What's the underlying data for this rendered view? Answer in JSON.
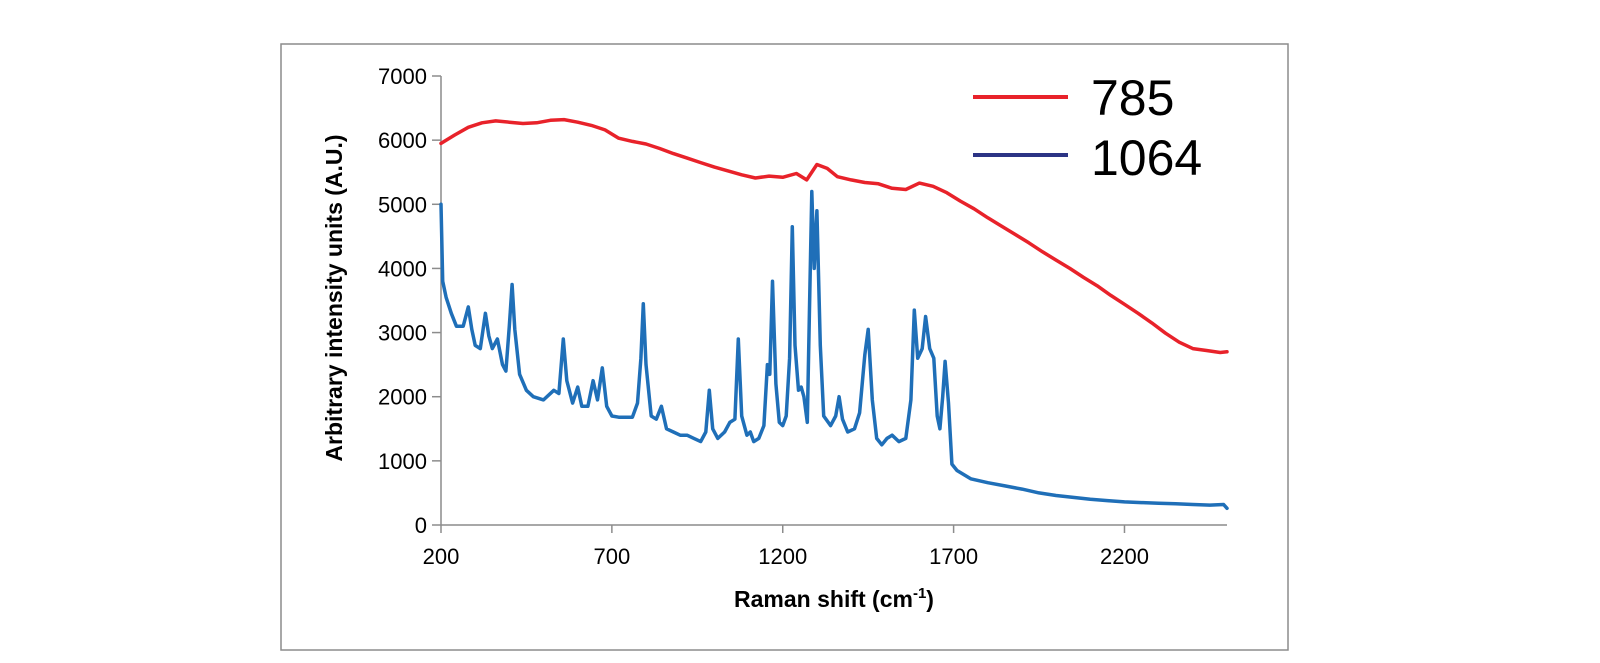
{
  "chart_data": {
    "type": "line",
    "title": "",
    "xlabel": "Raman shift (cm",
    "xlabel_sup": "-1",
    "xlabel_close": ")",
    "ylabel": "Arbitrary intensity units (A.U.)",
    "xlim": [
      200,
      2500
    ],
    "ylim": [
      0,
      7000
    ],
    "x_ticks": [
      200,
      700,
      1200,
      1700,
      2200
    ],
    "y_ticks": [
      0,
      1000,
      2000,
      3000,
      4000,
      5000,
      6000,
      7000
    ],
    "legend_position": "top-right",
    "series": [
      {
        "name": "785",
        "color": "#e8222a",
        "points": [
          [
            200,
            5950
          ],
          [
            240,
            6080
          ],
          [
            280,
            6200
          ],
          [
            320,
            6270
          ],
          [
            360,
            6300
          ],
          [
            400,
            6280
          ],
          [
            440,
            6260
          ],
          [
            480,
            6270
          ],
          [
            520,
            6310
          ],
          [
            560,
            6320
          ],
          [
            600,
            6280
          ],
          [
            640,
            6230
          ],
          [
            680,
            6160
          ],
          [
            720,
            6030
          ],
          [
            760,
            5980
          ],
          [
            800,
            5940
          ],
          [
            840,
            5870
          ],
          [
            880,
            5790
          ],
          [
            920,
            5720
          ],
          [
            960,
            5650
          ],
          [
            1000,
            5580
          ],
          [
            1040,
            5520
          ],
          [
            1080,
            5460
          ],
          [
            1120,
            5410
          ],
          [
            1160,
            5440
          ],
          [
            1200,
            5420
          ],
          [
            1240,
            5480
          ],
          [
            1270,
            5380
          ],
          [
            1300,
            5620
          ],
          [
            1330,
            5560
          ],
          [
            1360,
            5430
          ],
          [
            1400,
            5380
          ],
          [
            1440,
            5340
          ],
          [
            1480,
            5320
          ],
          [
            1520,
            5250
          ],
          [
            1560,
            5230
          ],
          [
            1600,
            5330
          ],
          [
            1640,
            5280
          ],
          [
            1680,
            5180
          ],
          [
            1720,
            5050
          ],
          [
            1760,
            4930
          ],
          [
            1800,
            4790
          ],
          [
            1840,
            4660
          ],
          [
            1880,
            4530
          ],
          [
            1920,
            4400
          ],
          [
            1960,
            4260
          ],
          [
            2000,
            4130
          ],
          [
            2040,
            4000
          ],
          [
            2080,
            3860
          ],
          [
            2120,
            3730
          ],
          [
            2160,
            3580
          ],
          [
            2200,
            3440
          ],
          [
            2240,
            3300
          ],
          [
            2280,
            3150
          ],
          [
            2320,
            2990
          ],
          [
            2360,
            2850
          ],
          [
            2400,
            2750
          ],
          [
            2440,
            2720
          ],
          [
            2480,
            2690
          ],
          [
            2500,
            2700
          ]
        ]
      },
      {
        "name": "1064",
        "color": "#1f6fb8",
        "points": [
          [
            200,
            5000
          ],
          [
            205,
            3800
          ],
          [
            215,
            3550
          ],
          [
            230,
            3300
          ],
          [
            245,
            3100
          ],
          [
            265,
            3100
          ],
          [
            280,
            3400
          ],
          [
            290,
            3050
          ],
          [
            300,
            2800
          ],
          [
            315,
            2750
          ],
          [
            330,
            3300
          ],
          [
            340,
            2950
          ],
          [
            350,
            2750
          ],
          [
            365,
            2900
          ],
          [
            380,
            2500
          ],
          [
            390,
            2400
          ],
          [
            400,
            3100
          ],
          [
            408,
            3750
          ],
          [
            416,
            3050
          ],
          [
            430,
            2350
          ],
          [
            450,
            2100
          ],
          [
            470,
            2000
          ],
          [
            500,
            1950
          ],
          [
            530,
            2100
          ],
          [
            545,
            2050
          ],
          [
            558,
            2900
          ],
          [
            568,
            2250
          ],
          [
            585,
            1900
          ],
          [
            600,
            2150
          ],
          [
            612,
            1850
          ],
          [
            630,
            1850
          ],
          [
            645,
            2250
          ],
          [
            658,
            1950
          ],
          [
            672,
            2450
          ],
          [
            685,
            1850
          ],
          [
            700,
            1700
          ],
          [
            720,
            1680
          ],
          [
            760,
            1680
          ],
          [
            775,
            1900
          ],
          [
            785,
            2600
          ],
          [
            792,
            3450
          ],
          [
            800,
            2500
          ],
          [
            815,
            1700
          ],
          [
            830,
            1650
          ],
          [
            845,
            1850
          ],
          [
            860,
            1500
          ],
          [
            880,
            1450
          ],
          [
            900,
            1400
          ],
          [
            920,
            1400
          ],
          [
            940,
            1350
          ],
          [
            960,
            1300
          ],
          [
            975,
            1450
          ],
          [
            985,
            2100
          ],
          [
            995,
            1500
          ],
          [
            1010,
            1350
          ],
          [
            1030,
            1450
          ],
          [
            1045,
            1600
          ],
          [
            1060,
            1650
          ],
          [
            1070,
            2900
          ],
          [
            1080,
            1700
          ],
          [
            1095,
            1400
          ],
          [
            1105,
            1450
          ],
          [
            1115,
            1300
          ],
          [
            1130,
            1350
          ],
          [
            1145,
            1550
          ],
          [
            1155,
            2500
          ],
          [
            1162,
            2350
          ],
          [
            1170,
            3800
          ],
          [
            1180,
            2200
          ],
          [
            1190,
            1600
          ],
          [
            1200,
            1550
          ],
          [
            1210,
            1700
          ],
          [
            1220,
            2600
          ],
          [
            1228,
            4650
          ],
          [
            1236,
            2800
          ],
          [
            1246,
            2100
          ],
          [
            1254,
            2150
          ],
          [
            1262,
            2000
          ],
          [
            1272,
            1600
          ],
          [
            1278,
            3300
          ],
          [
            1285,
            5200
          ],
          [
            1292,
            4000
          ],
          [
            1300,
            4900
          ],
          [
            1310,
            2800
          ],
          [
            1320,
            1700
          ],
          [
            1340,
            1550
          ],
          [
            1355,
            1700
          ],
          [
            1365,
            2000
          ],
          [
            1375,
            1650
          ],
          [
            1390,
            1450
          ],
          [
            1410,
            1500
          ],
          [
            1425,
            1750
          ],
          [
            1440,
            2650
          ],
          [
            1450,
            3050
          ],
          [
            1462,
            1950
          ],
          [
            1475,
            1350
          ],
          [
            1490,
            1250
          ],
          [
            1505,
            1350
          ],
          [
            1520,
            1400
          ],
          [
            1540,
            1300
          ],
          [
            1560,
            1350
          ],
          [
            1575,
            1950
          ],
          [
            1585,
            3350
          ],
          [
            1595,
            2600
          ],
          [
            1608,
            2750
          ],
          [
            1618,
            3250
          ],
          [
            1630,
            2750
          ],
          [
            1642,
            2600
          ],
          [
            1652,
            1700
          ],
          [
            1660,
            1500
          ],
          [
            1668,
            2000
          ],
          [
            1675,
            2550
          ],
          [
            1685,
            1900
          ],
          [
            1695,
            950
          ],
          [
            1710,
            850
          ],
          [
            1750,
            720
          ],
          [
            1800,
            660
          ],
          [
            1850,
            610
          ],
          [
            1900,
            560
          ],
          [
            1950,
            500
          ],
          [
            2000,
            460
          ],
          [
            2050,
            430
          ],
          [
            2100,
            400
          ],
          [
            2150,
            380
          ],
          [
            2200,
            360
          ],
          [
            2250,
            350
          ],
          [
            2300,
            340
          ],
          [
            2350,
            330
          ],
          [
            2400,
            320
          ],
          [
            2450,
            310
          ],
          [
            2490,
            320
          ],
          [
            2500,
            260
          ]
        ]
      }
    ]
  }
}
